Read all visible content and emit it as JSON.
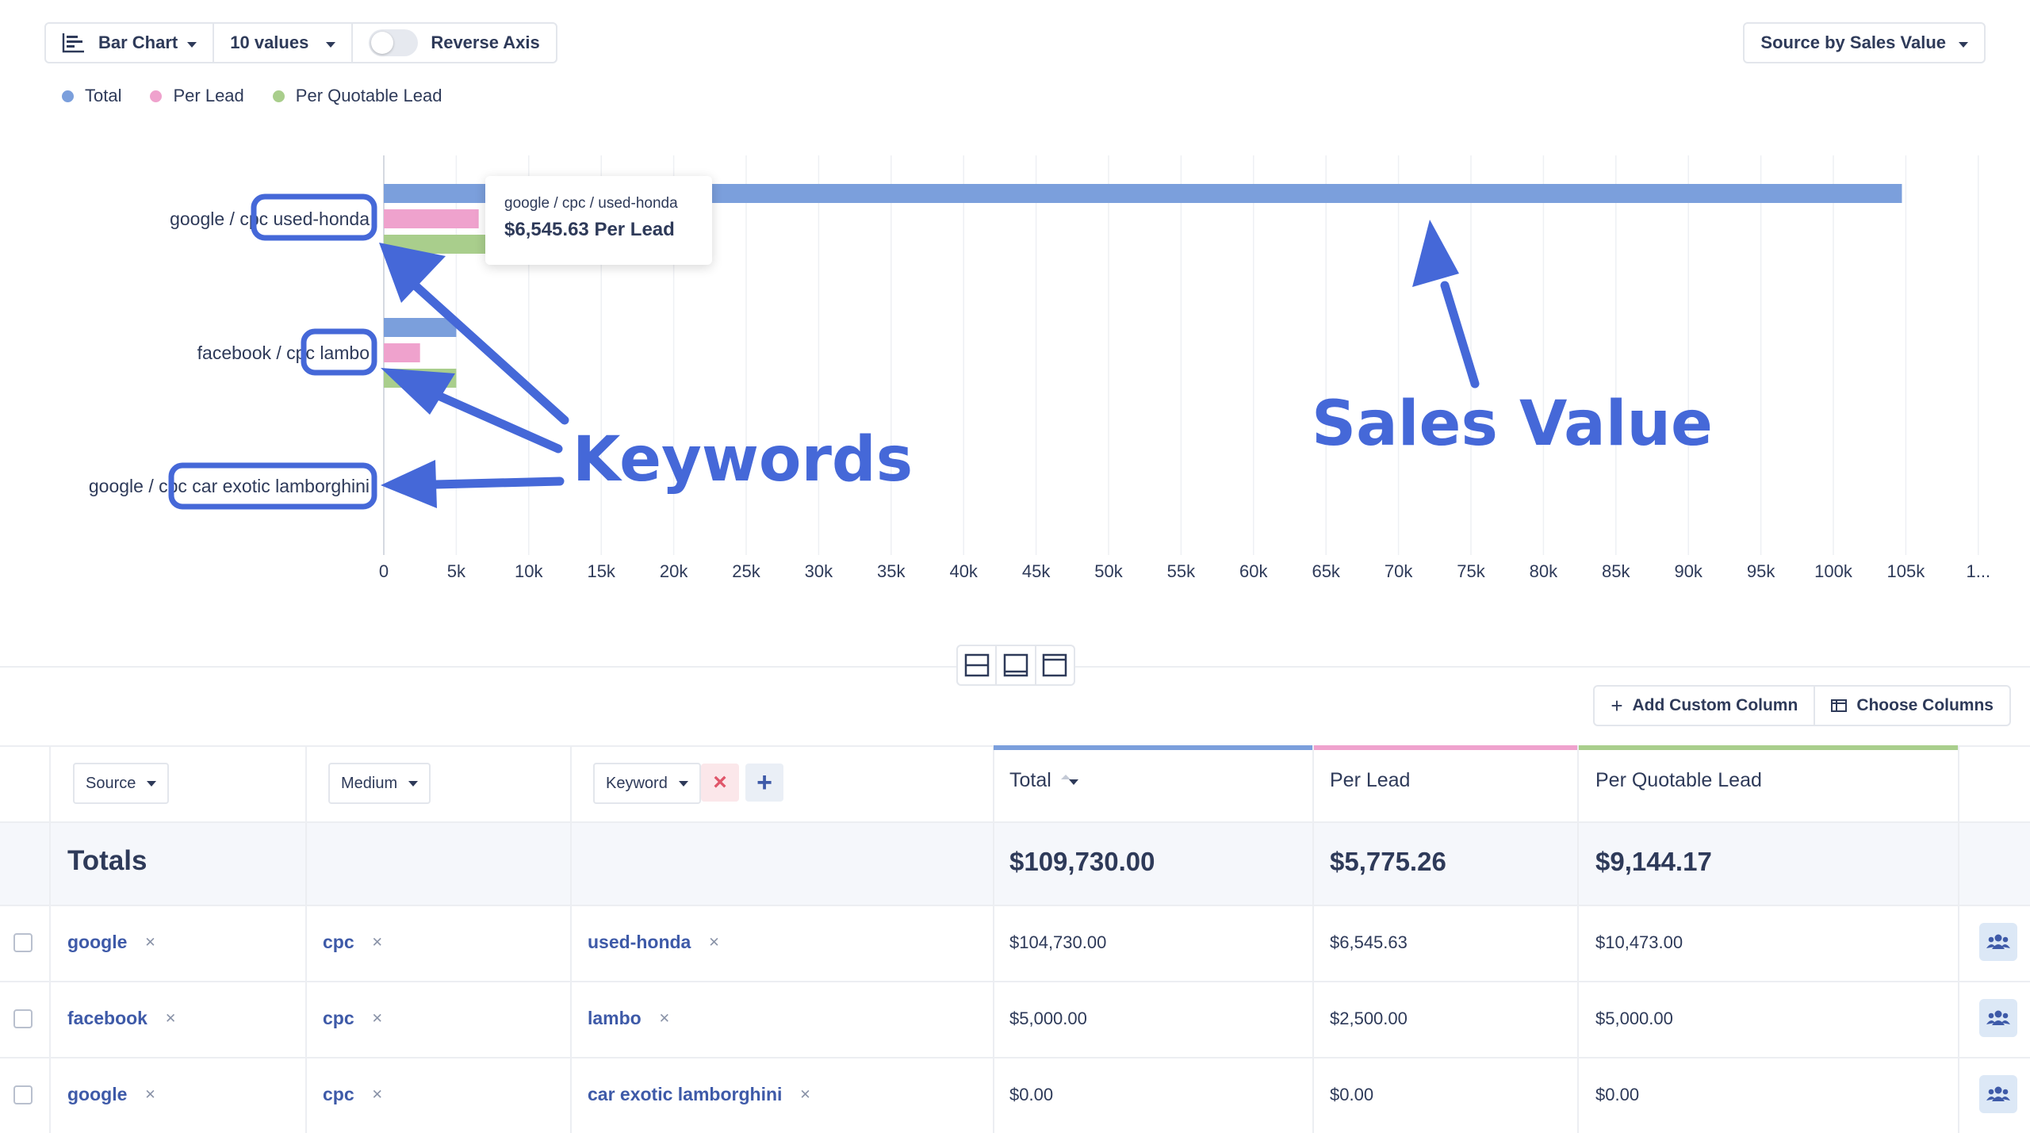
{
  "toolbar": {
    "chart_type_label": "Bar Chart",
    "values_label": "10 values",
    "reverse_axis_label": "Reverse Axis",
    "reverse_axis_on": false,
    "source_select_label": "Source by Sales Value"
  },
  "legend": [
    {
      "label": "Total",
      "color": "#7b9fdc"
    },
    {
      "label": "Per Lead",
      "color": "#efa2cd"
    },
    {
      "label": "Per Quotable Lead",
      "color": "#a9ce8c"
    }
  ],
  "chart_data": {
    "type": "bar",
    "orientation": "horizontal",
    "categories": [
      {
        "prefix": "google / cpc ",
        "keyword": "used-honda"
      },
      {
        "prefix": "facebook / cpc ",
        "keyword": "lambo"
      },
      {
        "prefix": "google / cpc ",
        "keyword": "car exotic lamborghini"
      }
    ],
    "series": [
      {
        "name": "Total",
        "color": "#7b9fdc",
        "values": [
          104730,
          5000,
          0
        ]
      },
      {
        "name": "Per Lead",
        "color": "#efa2cd",
        "values": [
          6545.63,
          2500,
          0
        ]
      },
      {
        "name": "Per Quotable Lead",
        "color": "#a9ce8c",
        "values": [
          10473,
          5000,
          0
        ]
      }
    ],
    "x_ticks": [
      "0",
      "5k",
      "10k",
      "15k",
      "20k",
      "25k",
      "30k",
      "35k",
      "40k",
      "45k",
      "50k",
      "55k",
      "60k",
      "65k",
      "70k",
      "75k",
      "80k",
      "85k",
      "90k",
      "95k",
      "100k",
      "105k",
      "1..."
    ],
    "xlim": [
      0,
      110000
    ],
    "grid": true,
    "legend_position": "top-left"
  },
  "tooltip": {
    "title": "google / cpc / used-honda",
    "value": "$6,545.63 Per Lead"
  },
  "annotations": {
    "keywords": "Keywords",
    "sales_value": "Sales Value",
    "color": "#4568d8"
  },
  "actions": {
    "add_custom_column": "Add Custom Column",
    "choose_columns": "Choose Columns"
  },
  "table": {
    "filters": {
      "source": "Source",
      "medium": "Medium",
      "keyword": "Keyword"
    },
    "columns": {
      "total": "Total",
      "per_lead": "Per Lead",
      "per_quotable_lead": "Per Quotable Lead"
    },
    "column_colors": {
      "total": "#7b9fdc",
      "per_lead": "#efa2cd",
      "per_quotable_lead": "#a9ce8c"
    },
    "totals": {
      "label": "Totals",
      "total": "$109,730.00",
      "per_lead": "$5,775.26",
      "per_quotable_lead": "$9,144.17"
    },
    "rows": [
      {
        "source": "google",
        "medium": "cpc",
        "keyword": "used-honda",
        "total": "$104,730.00",
        "per_lead": "$6,545.63",
        "per_quotable_lead": "$10,473.00"
      },
      {
        "source": "facebook",
        "medium": "cpc",
        "keyword": "lambo",
        "total": "$5,000.00",
        "per_lead": "$2,500.00",
        "per_quotable_lead": "$5,000.00"
      },
      {
        "source": "google",
        "medium": "cpc",
        "keyword": "car exotic lamborghini",
        "total": "$0.00",
        "per_lead": "$0.00",
        "per_quotable_lead": "$0.00"
      }
    ]
  }
}
